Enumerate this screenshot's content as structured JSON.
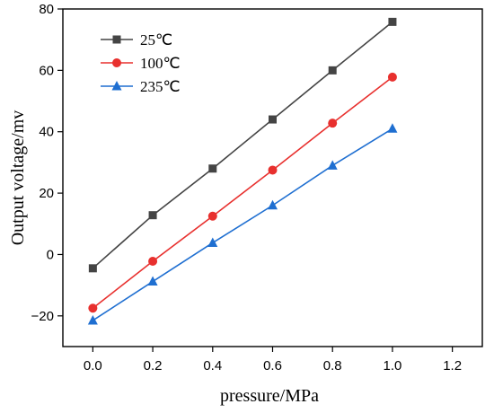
{
  "chart_data": {
    "type": "line",
    "xlabel": "pressure/MPa",
    "ylabel": "Output voltage/mv",
    "xlim": [
      -0.1,
      1.3
    ],
    "ylim": [
      -30,
      80
    ],
    "xticks": [
      "0.0",
      "0.2",
      "0.4",
      "0.6",
      "0.8",
      "1.0",
      "1.2"
    ],
    "yticks": [
      "-20",
      "0",
      "20",
      "40",
      "60",
      "80"
    ],
    "x": [
      0.0,
      0.2,
      0.4,
      0.6,
      0.8,
      1.0
    ],
    "legend_position": "top-left",
    "grid": false,
    "series": [
      {
        "name": "25℃",
        "color": "#444444",
        "marker": "square",
        "values": [
          -4.5,
          12.8,
          28,
          44,
          60,
          75.8
        ]
      },
      {
        "name": "100℃",
        "color": "#e8302e",
        "marker": "circle",
        "values": [
          -17.5,
          -2.2,
          12.5,
          27.5,
          42.8,
          57.8
        ]
      },
      {
        "name": "235℃",
        "color": "#1f6fd1",
        "marker": "triangle",
        "values": [
          -21.5,
          -8.8,
          3.8,
          16,
          29,
          41
        ]
      }
    ]
  }
}
